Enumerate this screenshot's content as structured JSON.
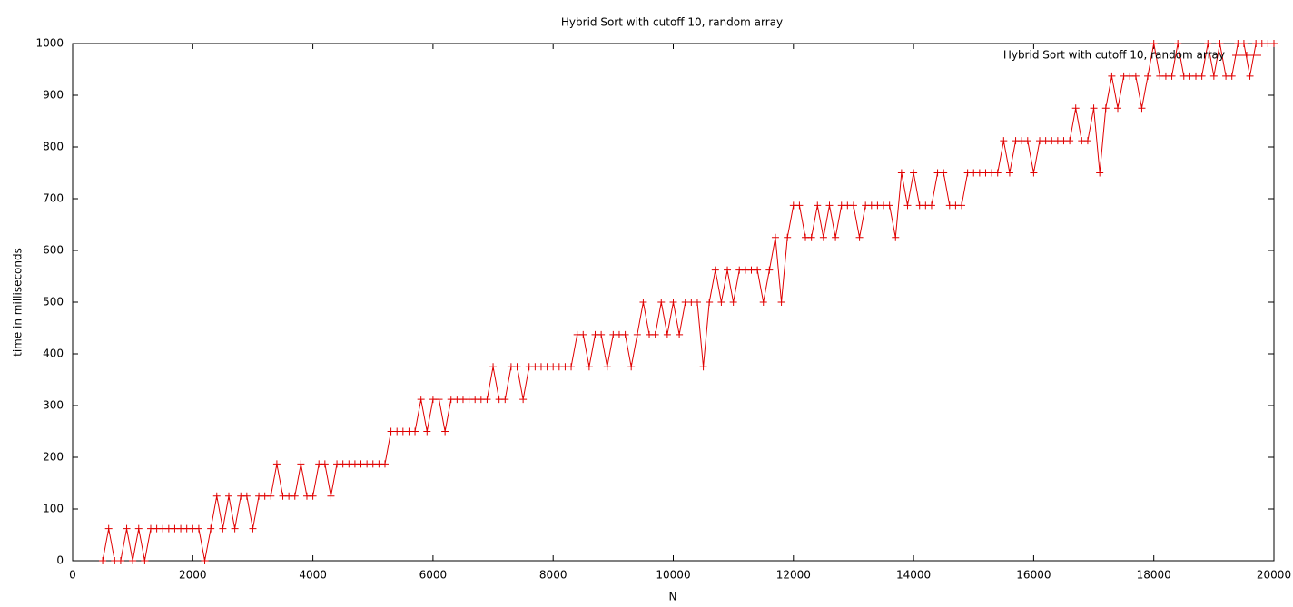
{
  "chart_data": {
    "type": "line",
    "title": "Hybrid Sort with cutoff 10, random array",
    "xlabel": "N",
    "ylabel": "time in milliseconds",
    "xlim": [
      0,
      20000
    ],
    "ylim": [
      0,
      1000
    ],
    "xticks": [
      0,
      2000,
      4000,
      6000,
      8000,
      10000,
      12000,
      14000,
      16000,
      18000,
      20000
    ],
    "yticks": [
      0,
      100,
      200,
      300,
      400,
      500,
      600,
      700,
      800,
      900,
      1000
    ],
    "grid": false,
    "legend": "top-right",
    "x": [
      500,
      600,
      700,
      800,
      900,
      1000,
      1100,
      1200,
      1300,
      1400,
      1500,
      1600,
      1700,
      1800,
      1900,
      2000,
      2100,
      2200,
      2300,
      2400,
      2500,
      2600,
      2700,
      2800,
      2900,
      3000,
      3100,
      3200,
      3300,
      3400,
      3500,
      3600,
      3700,
      3800,
      3900,
      4000,
      4100,
      4200,
      4300,
      4400,
      4500,
      4600,
      4700,
      4800,
      4900,
      5000,
      5100,
      5200,
      5300,
      5400,
      5500,
      5600,
      5700,
      5800,
      5900,
      6000,
      6100,
      6200,
      6300,
      6400,
      6500,
      6600,
      6700,
      6800,
      6900,
      7000,
      7100,
      7200,
      7300,
      7400,
      7500,
      7600,
      7700,
      7800,
      7900,
      8000,
      8100,
      8200,
      8300,
      8400,
      8500,
      8600,
      8700,
      8800,
      8900,
      9000,
      9100,
      9200,
      9300,
      9400,
      9500,
      9600,
      9700,
      9800,
      9900,
      10000,
      10100,
      10200,
      10300,
      10400,
      10500,
      10600,
      10700,
      10800,
      10900,
      11000,
      11100,
      11200,
      11300,
      11400,
      11500,
      11600,
      11700,
      11800,
      11900,
      12000,
      12100,
      12200,
      12300,
      12400,
      12500,
      12600,
      12700,
      12800,
      12900,
      13000,
      13100,
      13200,
      13300,
      13400,
      13500,
      13600,
      13700,
      13800,
      13900,
      14000,
      14100,
      14200,
      14300,
      14400,
      14500,
      14600,
      14700,
      14800,
      14900,
      15000,
      15100,
      15200,
      15300,
      15400,
      15500,
      15600,
      15700,
      15800,
      15900,
      16000,
      16100,
      16200,
      16300,
      16400,
      16500,
      16600,
      16700,
      16800,
      16900,
      17000,
      17100,
      17200,
      17300,
      17400,
      17500,
      17600,
      17700,
      17800,
      17900,
      18000,
      18100,
      18200,
      18300,
      18400,
      18500,
      18600,
      18700,
      18800,
      18900,
      19000,
      19100,
      19200,
      19300,
      19400,
      19500,
      19600,
      19700,
      19800,
      19900,
      20000
    ],
    "series": [
      {
        "name": "Hybrid Sort with cutoff 10, random array",
        "color": "#e00000",
        "values": [
          0,
          62,
          0,
          0,
          62,
          0,
          62,
          0,
          62,
          62,
          62,
          62,
          62,
          62,
          62,
          62,
          62,
          0,
          62,
          125,
          62,
          125,
          62,
          125,
          125,
          62,
          125,
          125,
          125,
          187,
          125,
          125,
          125,
          187,
          125,
          125,
          187,
          187,
          125,
          187,
          187,
          187,
          187,
          187,
          187,
          187,
          187,
          187,
          250,
          250,
          250,
          250,
          250,
          312,
          250,
          312,
          312,
          250,
          312,
          312,
          312,
          312,
          312,
          312,
          312,
          375,
          312,
          312,
          375,
          375,
          312,
          375,
          375,
          375,
          375,
          375,
          375,
          375,
          375,
          437,
          437,
          375,
          437,
          437,
          375,
          437,
          437,
          437,
          375,
          437,
          500,
          437,
          437,
          500,
          437,
          500,
          437,
          500,
          500,
          500,
          375,
          500,
          562,
          500,
          562,
          500,
          562,
          562,
          562,
          562,
          500,
          562,
          625,
          500,
          625,
          687,
          687,
          625,
          625,
          687,
          625,
          687,
          625,
          687,
          687,
          687,
          625,
          687,
          687,
          687,
          687,
          687,
          625,
          750,
          687,
          750,
          687,
          687,
          687,
          750,
          750,
          687,
          687,
          687,
          750,
          750,
          750,
          750,
          750,
          750,
          812,
          750,
          812,
          812,
          812,
          750,
          812,
          812,
          812,
          812,
          812,
          812,
          875,
          812,
          812,
          875,
          750,
          875,
          937,
          875,
          937,
          937,
          937,
          875,
          937,
          1000,
          937,
          937,
          937,
          1000,
          937,
          937,
          937,
          937,
          1000,
          937,
          1000,
          937,
          937,
          1000,
          1000,
          937,
          1000,
          1000,
          1000,
          1000
        ]
      }
    ]
  }
}
